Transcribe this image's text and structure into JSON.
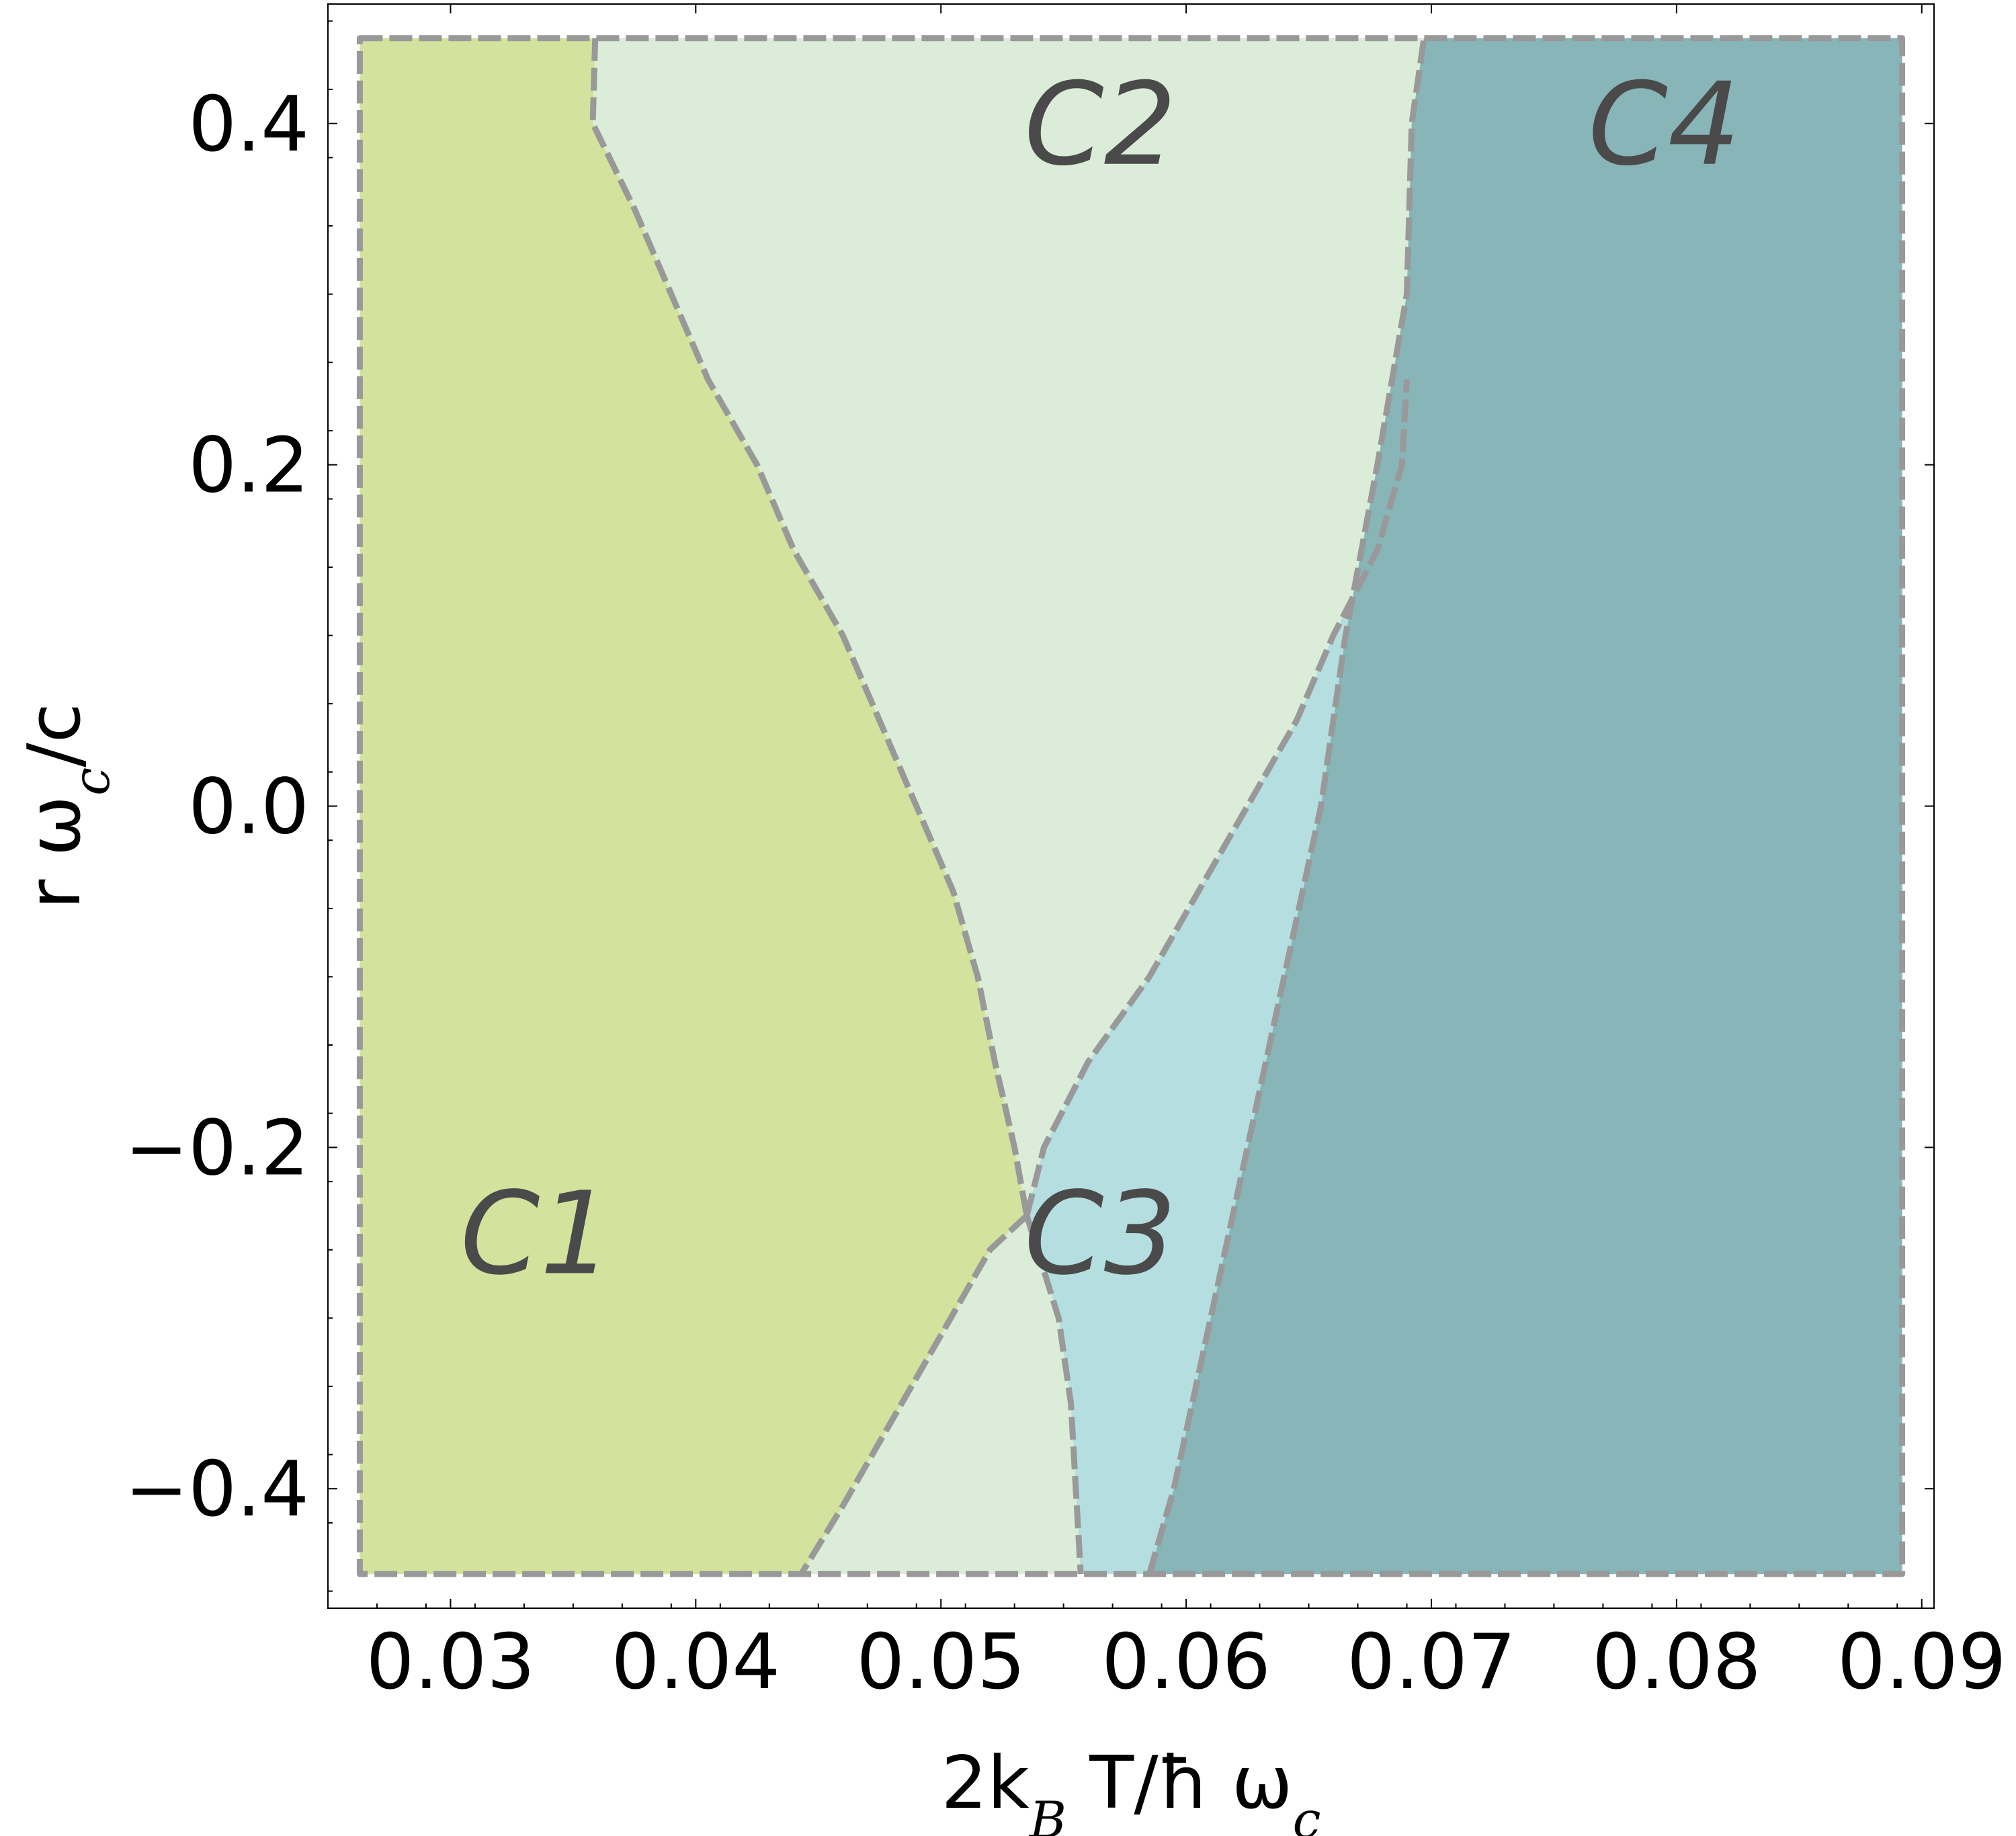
{
  "chart_data": {
    "type": "area",
    "xlabel": "2k_B T/ħ ω_c",
    "ylabel": "r ω_c/c",
    "xlim": [
      0.025,
      0.0905
    ],
    "ylim": [
      -0.47,
      0.47
    ],
    "x_ticks": [
      0.03,
      0.04,
      0.05,
      0.06,
      0.07,
      0.08,
      0.09
    ],
    "x_tick_labels": [
      "0.03",
      "0.04",
      "0.05",
      "0.06",
      "0.07",
      "0.08",
      "0.09"
    ],
    "y_ticks": [
      -0.4,
      -0.2,
      0.0,
      0.2,
      0.4
    ],
    "y_tick_labels": [
      "−0.4",
      "−0.2",
      "0.0",
      "0.2",
      "0.4"
    ],
    "grid": false,
    "legend": "none",
    "plot_range": {
      "x": [
        0.0263,
        0.0892
      ],
      "y": [
        -0.45,
        0.45
      ]
    },
    "regions": [
      {
        "name": "C1",
        "color": "#d3e29c",
        "label_at": {
          "x": 0.0335,
          "y": -0.25
        }
      },
      {
        "name": "C2",
        "color": "#dbedd8",
        "label_at": {
          "x": 0.0565,
          "y": 0.4
        }
      },
      {
        "name": "C3",
        "color": "#b5dee0",
        "label_at": {
          "x": 0.0565,
          "y": -0.25
        }
      },
      {
        "name": "C4",
        "color": "#87b5b8",
        "label_at": {
          "x": 0.0795,
          "y": 0.4
        }
      }
    ],
    "boundaries": [
      {
        "between": "C1 | C2 (upper)",
        "points": [
          [
            0.0359,
            0.45
          ],
          [
            0.0358,
            0.4
          ],
          [
            0.0375,
            0.35
          ],
          [
            0.039,
            0.3
          ],
          [
            0.0405,
            0.25
          ],
          [
            0.0425,
            0.2
          ],
          [
            0.044,
            0.15
          ],
          [
            0.046,
            0.1
          ],
          [
            0.0475,
            0.05
          ],
          [
            0.049,
            0.0
          ],
          [
            0.0505,
            -0.05
          ],
          [
            0.0515,
            -0.1
          ],
          [
            0.0522,
            -0.15
          ],
          [
            0.053,
            -0.2
          ],
          [
            0.0535,
            -0.24
          ]
        ]
      },
      {
        "between": "C1 | C2 (lower)",
        "points": [
          [
            0.0535,
            -0.24
          ],
          [
            0.052,
            -0.26
          ],
          [
            0.05,
            -0.31
          ],
          [
            0.048,
            -0.36
          ],
          [
            0.046,
            -0.41
          ],
          [
            0.0443,
            -0.45
          ]
        ]
      },
      {
        "between": "C2 | C3",
        "points": [
          [
            0.0535,
            -0.24
          ],
          [
            0.0542,
            -0.2
          ],
          [
            0.056,
            -0.15
          ],
          [
            0.0585,
            -0.1
          ],
          [
            0.0605,
            -0.05
          ],
          [
            0.0625,
            0.0
          ],
          [
            0.0645,
            0.05
          ],
          [
            0.066,
            0.1
          ],
          [
            0.0678,
            0.15
          ],
          [
            0.0688,
            0.2
          ],
          [
            0.069,
            0.25
          ]
        ]
      },
      {
        "between": "C2 | C3 (lower)",
        "points": [
          [
            0.0535,
            -0.24
          ],
          [
            0.0548,
            -0.3
          ],
          [
            0.0553,
            -0.35
          ],
          [
            0.0555,
            -0.4
          ],
          [
            0.0557,
            -0.45
          ]
        ]
      },
      {
        "between": "C2/C3 | C4",
        "points": [
          [
            0.0585,
            -0.45
          ],
          [
            0.0595,
            -0.4
          ],
          [
            0.061,
            -0.3
          ],
          [
            0.0625,
            -0.2
          ],
          [
            0.064,
            -0.1
          ],
          [
            0.0655,
            0.0
          ],
          [
            0.0665,
            0.1
          ],
          [
            0.0678,
            0.2
          ],
          [
            0.069,
            0.3
          ],
          [
            0.0691,
            0.35
          ],
          [
            0.0692,
            0.4
          ],
          [
            0.0697,
            0.45
          ]
        ]
      }
    ]
  }
}
